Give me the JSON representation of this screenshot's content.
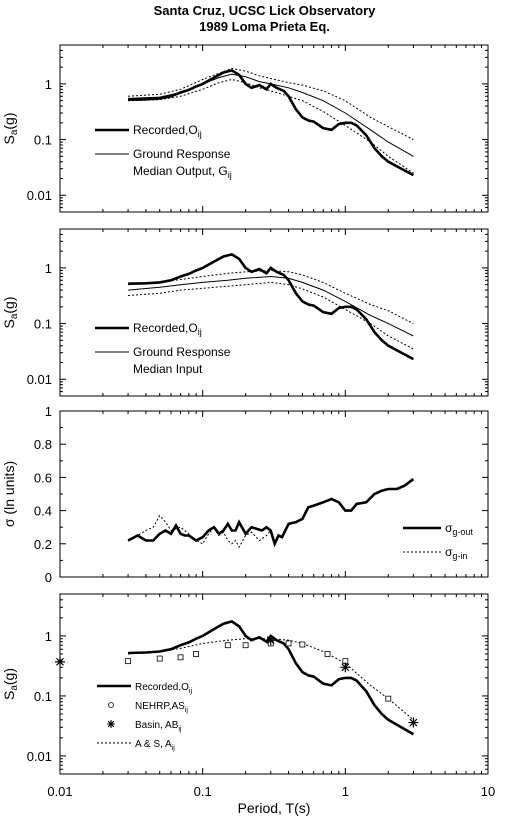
{
  "title_line1": "Santa Cruz, UCSC Lick Observatory",
  "title_line2": "1989 Loma Prieta Eq.",
  "x_axis": {
    "label": "Period, T(s)",
    "scale": "log",
    "range": [
      0.01,
      10
    ],
    "ticks": [
      0.01,
      0.1,
      1,
      10
    ],
    "tick_labels": [
      "0.01",
      "0.1",
      "1",
      "10"
    ]
  },
  "chart_data": [
    {
      "type": "line",
      "panel": 1,
      "ylabel": "S",
      "ylabel_sub": "a",
      "ylabel_suffix": "(g)",
      "yscale": "log",
      "ylim": [
        0.005,
        5
      ],
      "yticks": [
        0.01,
        0.1,
        1
      ],
      "ytick_labels": [
        "0.01",
        "0.1",
        "1"
      ],
      "legend": [
        {
          "label": "Recorded,O",
          "sub": "ij",
          "style": "thick",
          "line2": "",
          "line2_sub": ""
        },
        {
          "label": "Ground Response",
          "sub": "",
          "style": "thin",
          "line2": "Median Output, G",
          "line2_sub": "ij"
        }
      ],
      "series": [
        {
          "style": "thick",
          "x": [
            0.03,
            0.04,
            0.05,
            0.06,
            0.07,
            0.08,
            0.09,
            0.1,
            0.12,
            0.14,
            0.16,
            0.18,
            0.2,
            0.22,
            0.25,
            0.28,
            0.3,
            0.33,
            0.37,
            0.4,
            0.45,
            0.5,
            0.55,
            0.6,
            0.7,
            0.8,
            0.9,
            1,
            1.1,
            1.2,
            1.4,
            1.6,
            1.8,
            2,
            2.3,
            2.6,
            3
          ],
          "y": [
            0.52,
            0.53,
            0.55,
            0.6,
            0.7,
            0.78,
            0.9,
            1.0,
            1.3,
            1.6,
            1.75,
            1.45,
            1.0,
            0.85,
            0.95,
            0.8,
            1.0,
            0.85,
            0.75,
            0.6,
            0.35,
            0.25,
            0.22,
            0.21,
            0.16,
            0.15,
            0.19,
            0.2,
            0.2,
            0.18,
            0.12,
            0.07,
            0.05,
            0.04,
            0.033,
            0.028,
            0.023
          ]
        },
        {
          "style": "thin",
          "x": [
            0.03,
            0.05,
            0.07,
            0.1,
            0.13,
            0.16,
            0.2,
            0.25,
            0.3,
            0.4,
            0.5,
            0.7,
            1,
            1.5,
            2,
            3
          ],
          "y": [
            0.55,
            0.58,
            0.7,
            1.0,
            1.3,
            1.5,
            1.35,
            1.1,
            1.0,
            0.85,
            0.7,
            0.5,
            0.3,
            0.15,
            0.09,
            0.05
          ]
        },
        {
          "style": "dotted",
          "x": [
            0.03,
            0.05,
            0.07,
            0.1,
            0.13,
            0.16,
            0.2,
            0.25,
            0.3,
            0.4,
            0.5,
            0.7,
            1,
            1.5,
            2,
            3
          ],
          "y": [
            0.6,
            0.65,
            0.8,
            1.2,
            1.55,
            1.9,
            1.7,
            1.4,
            1.25,
            1.05,
            0.95,
            0.75,
            0.5,
            0.25,
            0.17,
            0.1
          ]
        },
        {
          "style": "dotted",
          "x": [
            0.03,
            0.05,
            0.07,
            0.1,
            0.13,
            0.16,
            0.2,
            0.25,
            0.3,
            0.4,
            0.5,
            0.7,
            1,
            1.5,
            2,
            3
          ],
          "y": [
            0.5,
            0.52,
            0.6,
            0.8,
            1.05,
            1.2,
            1.05,
            0.85,
            0.75,
            0.6,
            0.5,
            0.32,
            0.18,
            0.09,
            0.05,
            0.025
          ]
        }
      ]
    },
    {
      "type": "line",
      "panel": 2,
      "ylabel": "S",
      "ylabel_sub": "a",
      "ylabel_suffix": "(g)",
      "yscale": "log",
      "ylim": [
        0.005,
        5
      ],
      "yticks": [
        0.01,
        0.1,
        1
      ],
      "ytick_labels": [
        "0.01",
        "0.1",
        "1"
      ],
      "legend": [
        {
          "label": "Recorded,O",
          "sub": "ij",
          "style": "thick",
          "line2": "",
          "line2_sub": ""
        },
        {
          "label": "Ground Response",
          "sub": "",
          "style": "thin",
          "line2": "Median Input",
          "line2_sub": ""
        }
      ],
      "series": [
        {
          "style": "thick",
          "x": [
            0.03,
            0.04,
            0.05,
            0.06,
            0.07,
            0.08,
            0.09,
            0.1,
            0.12,
            0.14,
            0.16,
            0.18,
            0.2,
            0.22,
            0.25,
            0.28,
            0.3,
            0.33,
            0.37,
            0.4,
            0.45,
            0.5,
            0.55,
            0.6,
            0.7,
            0.8,
            0.9,
            1,
            1.1,
            1.2,
            1.4,
            1.6,
            1.8,
            2,
            2.3,
            2.6,
            3
          ],
          "y": [
            0.52,
            0.53,
            0.55,
            0.6,
            0.7,
            0.78,
            0.9,
            1.0,
            1.3,
            1.6,
            1.75,
            1.45,
            1.0,
            0.85,
            0.95,
            0.8,
            1.0,
            0.85,
            0.75,
            0.6,
            0.35,
            0.25,
            0.22,
            0.21,
            0.16,
            0.15,
            0.19,
            0.2,
            0.2,
            0.18,
            0.12,
            0.07,
            0.05,
            0.04,
            0.033,
            0.028,
            0.023
          ]
        },
        {
          "style": "thin",
          "x": [
            0.03,
            0.05,
            0.07,
            0.1,
            0.15,
            0.2,
            0.3,
            0.4,
            0.5,
            0.7,
            1,
            1.5,
            2,
            3
          ],
          "y": [
            0.4,
            0.45,
            0.5,
            0.55,
            0.6,
            0.65,
            0.7,
            0.65,
            0.55,
            0.4,
            0.25,
            0.14,
            0.1,
            0.06
          ]
        },
        {
          "style": "dotted",
          "x": [
            0.03,
            0.05,
            0.07,
            0.1,
            0.15,
            0.2,
            0.3,
            0.4,
            0.5,
            0.7,
            1,
            1.5,
            2,
            3
          ],
          "y": [
            0.5,
            0.55,
            0.62,
            0.7,
            0.8,
            0.85,
            0.9,
            0.85,
            0.75,
            0.55,
            0.35,
            0.22,
            0.17,
            0.1
          ]
        },
        {
          "style": "dotted",
          "x": [
            0.03,
            0.05,
            0.07,
            0.1,
            0.15,
            0.2,
            0.3,
            0.4,
            0.5,
            0.7,
            1,
            1.5,
            2,
            3
          ],
          "y": [
            0.32,
            0.35,
            0.4,
            0.43,
            0.47,
            0.5,
            0.55,
            0.5,
            0.42,
            0.3,
            0.18,
            0.1,
            0.06,
            0.035
          ]
        }
      ]
    },
    {
      "type": "line",
      "panel": 3,
      "ylabel": "σ (ln units)",
      "ylabel_sub": "",
      "ylabel_suffix": "",
      "yscale": "linear",
      "ylim": [
        0,
        1
      ],
      "yticks": [
        0,
        0.2,
        0.4,
        0.6,
        0.8,
        1
      ],
      "ytick_labels": [
        "0",
        "0.2",
        "0.4",
        "0.6",
        "0.8",
        "1"
      ],
      "legend": [
        {
          "label": "σ",
          "sub": "g-out",
          "style": "thick",
          "line2": "",
          "line2_sub": ""
        },
        {
          "label": "σ",
          "sub": "g-in",
          "style": "dotted",
          "line2": "",
          "line2_sub": ""
        }
      ],
      "series": [
        {
          "style": "thick",
          "x": [
            0.03,
            0.035,
            0.04,
            0.045,
            0.05,
            0.055,
            0.06,
            0.065,
            0.07,
            0.075,
            0.08,
            0.09,
            0.1,
            0.11,
            0.12,
            0.13,
            0.14,
            0.15,
            0.16,
            0.17,
            0.18,
            0.2,
            0.22,
            0.24,
            0.26,
            0.28,
            0.3,
            0.32,
            0.34,
            0.36,
            0.4,
            0.45,
            0.5,
            0.55,
            0.6,
            0.7,
            0.8,
            0.9,
            1,
            1.1,
            1.2,
            1.4,
            1.6,
            1.8,
            2,
            2.3,
            2.6,
            3
          ],
          "y": [
            0.22,
            0.25,
            0.22,
            0.22,
            0.26,
            0.28,
            0.26,
            0.31,
            0.26,
            0.25,
            0.25,
            0.22,
            0.24,
            0.28,
            0.3,
            0.26,
            0.28,
            0.32,
            0.28,
            0.28,
            0.33,
            0.26,
            0.3,
            0.29,
            0.28,
            0.3,
            0.28,
            0.2,
            0.25,
            0.24,
            0.32,
            0.33,
            0.35,
            0.42,
            0.43,
            0.45,
            0.47,
            0.45,
            0.4,
            0.4,
            0.44,
            0.45,
            0.5,
            0.52,
            0.53,
            0.53,
            0.55,
            0.59
          ]
        },
        {
          "style": "dotted",
          "x": [
            0.03,
            0.035,
            0.04,
            0.045,
            0.05,
            0.055,
            0.06,
            0.07,
            0.08,
            0.09,
            0.1,
            0.11,
            0.12,
            0.13,
            0.14,
            0.15,
            0.16,
            0.17,
            0.18,
            0.2,
            0.22,
            0.25,
            0.28,
            0.3
          ],
          "y": [
            0.22,
            0.25,
            0.28,
            0.3,
            0.37,
            0.33,
            0.28,
            0.3,
            0.26,
            0.22,
            0.2,
            0.26,
            0.3,
            0.25,
            0.27,
            0.22,
            0.2,
            0.22,
            0.18,
            0.25,
            0.27,
            0.22,
            0.25,
            0.28
          ]
        }
      ]
    },
    {
      "type": "line",
      "panel": 4,
      "ylabel": "S",
      "ylabel_sub": "a",
      "ylabel_suffix": "(g)",
      "yscale": "log",
      "ylim": [
        0.005,
        5
      ],
      "yticks": [
        0.01,
        0.1,
        1
      ],
      "ytick_labels": [
        "0.01",
        "0.1",
        "1"
      ],
      "legend": [
        {
          "label": "Recorded,O",
          "sub": "ij",
          "style": "thick",
          "line2": "",
          "line2_sub": ""
        },
        {
          "label": "NEHRP,AS",
          "sub": "ij",
          "style": "square",
          "line2": "",
          "line2_sub": ""
        },
        {
          "label": "Basin, AB",
          "sub": "ij",
          "style": "star",
          "line2": "",
          "line2_sub": ""
        },
        {
          "label": "A & S, A",
          "sub": "ij",
          "style": "dotted",
          "line2": "",
          "line2_sub": ""
        }
      ],
      "series": [
        {
          "style": "thick",
          "x": [
            0.03,
            0.04,
            0.05,
            0.06,
            0.07,
            0.08,
            0.09,
            0.1,
            0.12,
            0.14,
            0.16,
            0.18,
            0.2,
            0.22,
            0.25,
            0.28,
            0.3,
            0.33,
            0.37,
            0.4,
            0.45,
            0.5,
            0.55,
            0.6,
            0.7,
            0.8,
            0.9,
            1,
            1.1,
            1.2,
            1.4,
            1.6,
            1.8,
            2,
            2.3,
            2.6,
            3
          ],
          "y": [
            0.52,
            0.53,
            0.55,
            0.6,
            0.7,
            0.78,
            0.9,
            1.0,
            1.3,
            1.6,
            1.75,
            1.45,
            1.0,
            0.85,
            0.95,
            0.8,
            1.0,
            0.85,
            0.75,
            0.6,
            0.35,
            0.25,
            0.22,
            0.21,
            0.16,
            0.15,
            0.19,
            0.2,
            0.2,
            0.18,
            0.12,
            0.07,
            0.05,
            0.04,
            0.033,
            0.028,
            0.023
          ]
        },
        {
          "style": "dotted",
          "x": [
            0.03,
            0.05,
            0.07,
            0.1,
            0.15,
            0.2,
            0.3,
            0.4,
            0.5,
            0.7,
            1,
            1.5,
            2,
            3
          ],
          "y": [
            0.5,
            0.55,
            0.62,
            0.75,
            0.85,
            0.9,
            0.9,
            0.85,
            0.75,
            0.55,
            0.35,
            0.15,
            0.09,
            0.04
          ]
        },
        {
          "style": "square",
          "x": [
            0.03,
            0.05,
            0.07,
            0.09,
            0.15,
            0.2,
            0.3,
            0.4,
            0.5,
            0.75,
            1,
            2
          ],
          "y": [
            0.38,
            0.42,
            0.44,
            0.5,
            0.7,
            0.7,
            0.75,
            0.75,
            0.72,
            0.5,
            0.38,
            0.09
          ]
        },
        {
          "style": "star",
          "x": [
            0.01,
            0.3,
            1,
            3
          ],
          "y": [
            0.37,
            0.85,
            0.3,
            0.036
          ]
        }
      ]
    }
  ]
}
